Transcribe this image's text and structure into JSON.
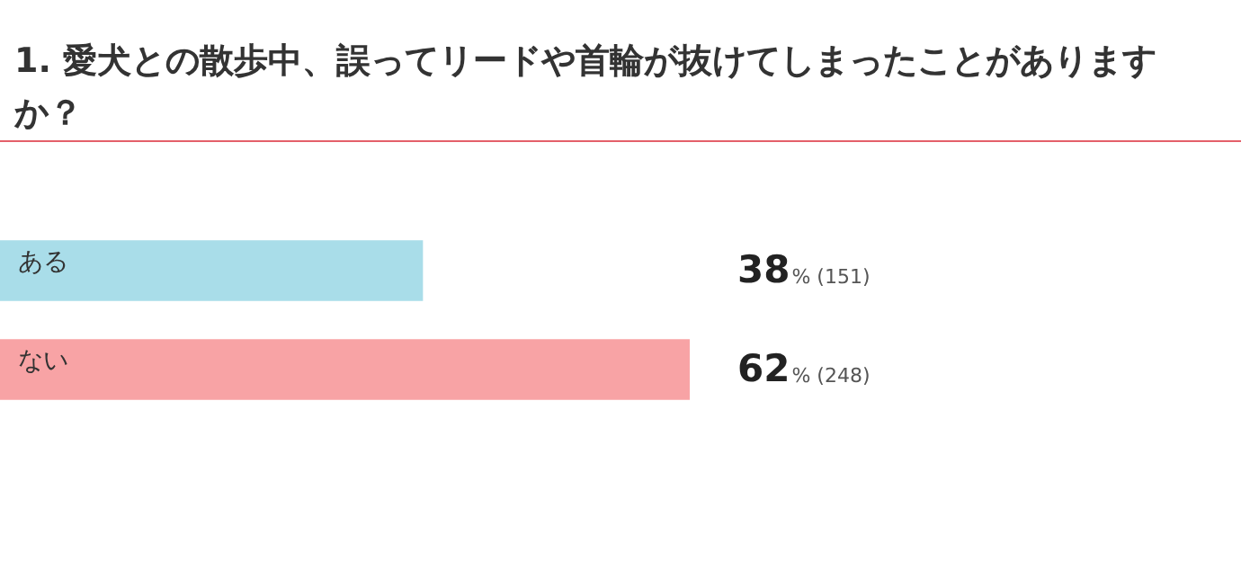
{
  "chart_data": {
    "type": "bar",
    "orientation": "horizontal",
    "title": "1. 愛犬との散歩中、誤ってリードや首輪が抜けてしまったことがありますか？",
    "categories": [
      "ある",
      "ない"
    ],
    "values": [
      38,
      62
    ],
    "colors": [
      "#a9dde9",
      "#f8a3a5"
    ],
    "value_labels": [
      "38% (151)",
      "62% (248)"
    ],
    "tick_labels": false
  }
}
